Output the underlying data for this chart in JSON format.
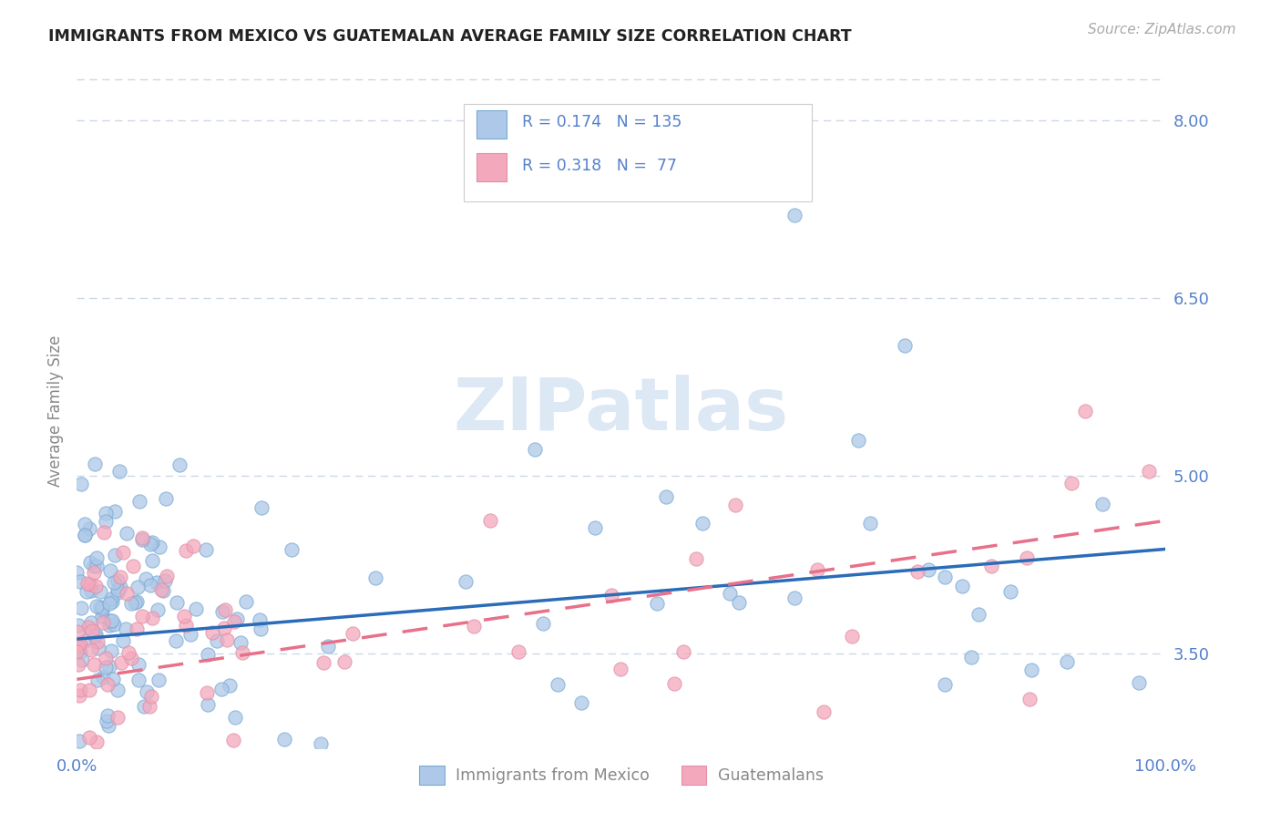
{
  "title": "IMMIGRANTS FROM MEXICO VS GUATEMALAN AVERAGE FAMILY SIZE CORRELATION CHART",
  "source": "Source: ZipAtlas.com",
  "ylabel": "Average Family Size",
  "xlim": [
    0.0,
    100.0
  ],
  "ylim": [
    2.7,
    8.4
  ],
  "yticks": [
    3.5,
    5.0,
    6.5,
    8.0
  ],
  "xticklabels": [
    "0.0%",
    "100.0%"
  ],
  "mexico_color": "#adc8e8",
  "guatemala_color": "#f4a8bc",
  "mexico_line_color": "#2b6cb8",
  "guatemala_line_color": "#e8708a",
  "background_color": "#ffffff",
  "grid_color": "#c8d4e4",
  "title_color": "#222222",
  "axis_color": "#5580cc",
  "watermark_color": "#dce8f4",
  "R_mexico": 0.174,
  "N_mexico": 135,
  "R_guatemala": 0.318,
  "N_guatemala": 77,
  "mexico_line_start_y": 3.62,
  "mexico_line_end_y": 4.38,
  "guatemala_line_start_y": 3.28,
  "guatemala_line_end_y": 4.62
}
